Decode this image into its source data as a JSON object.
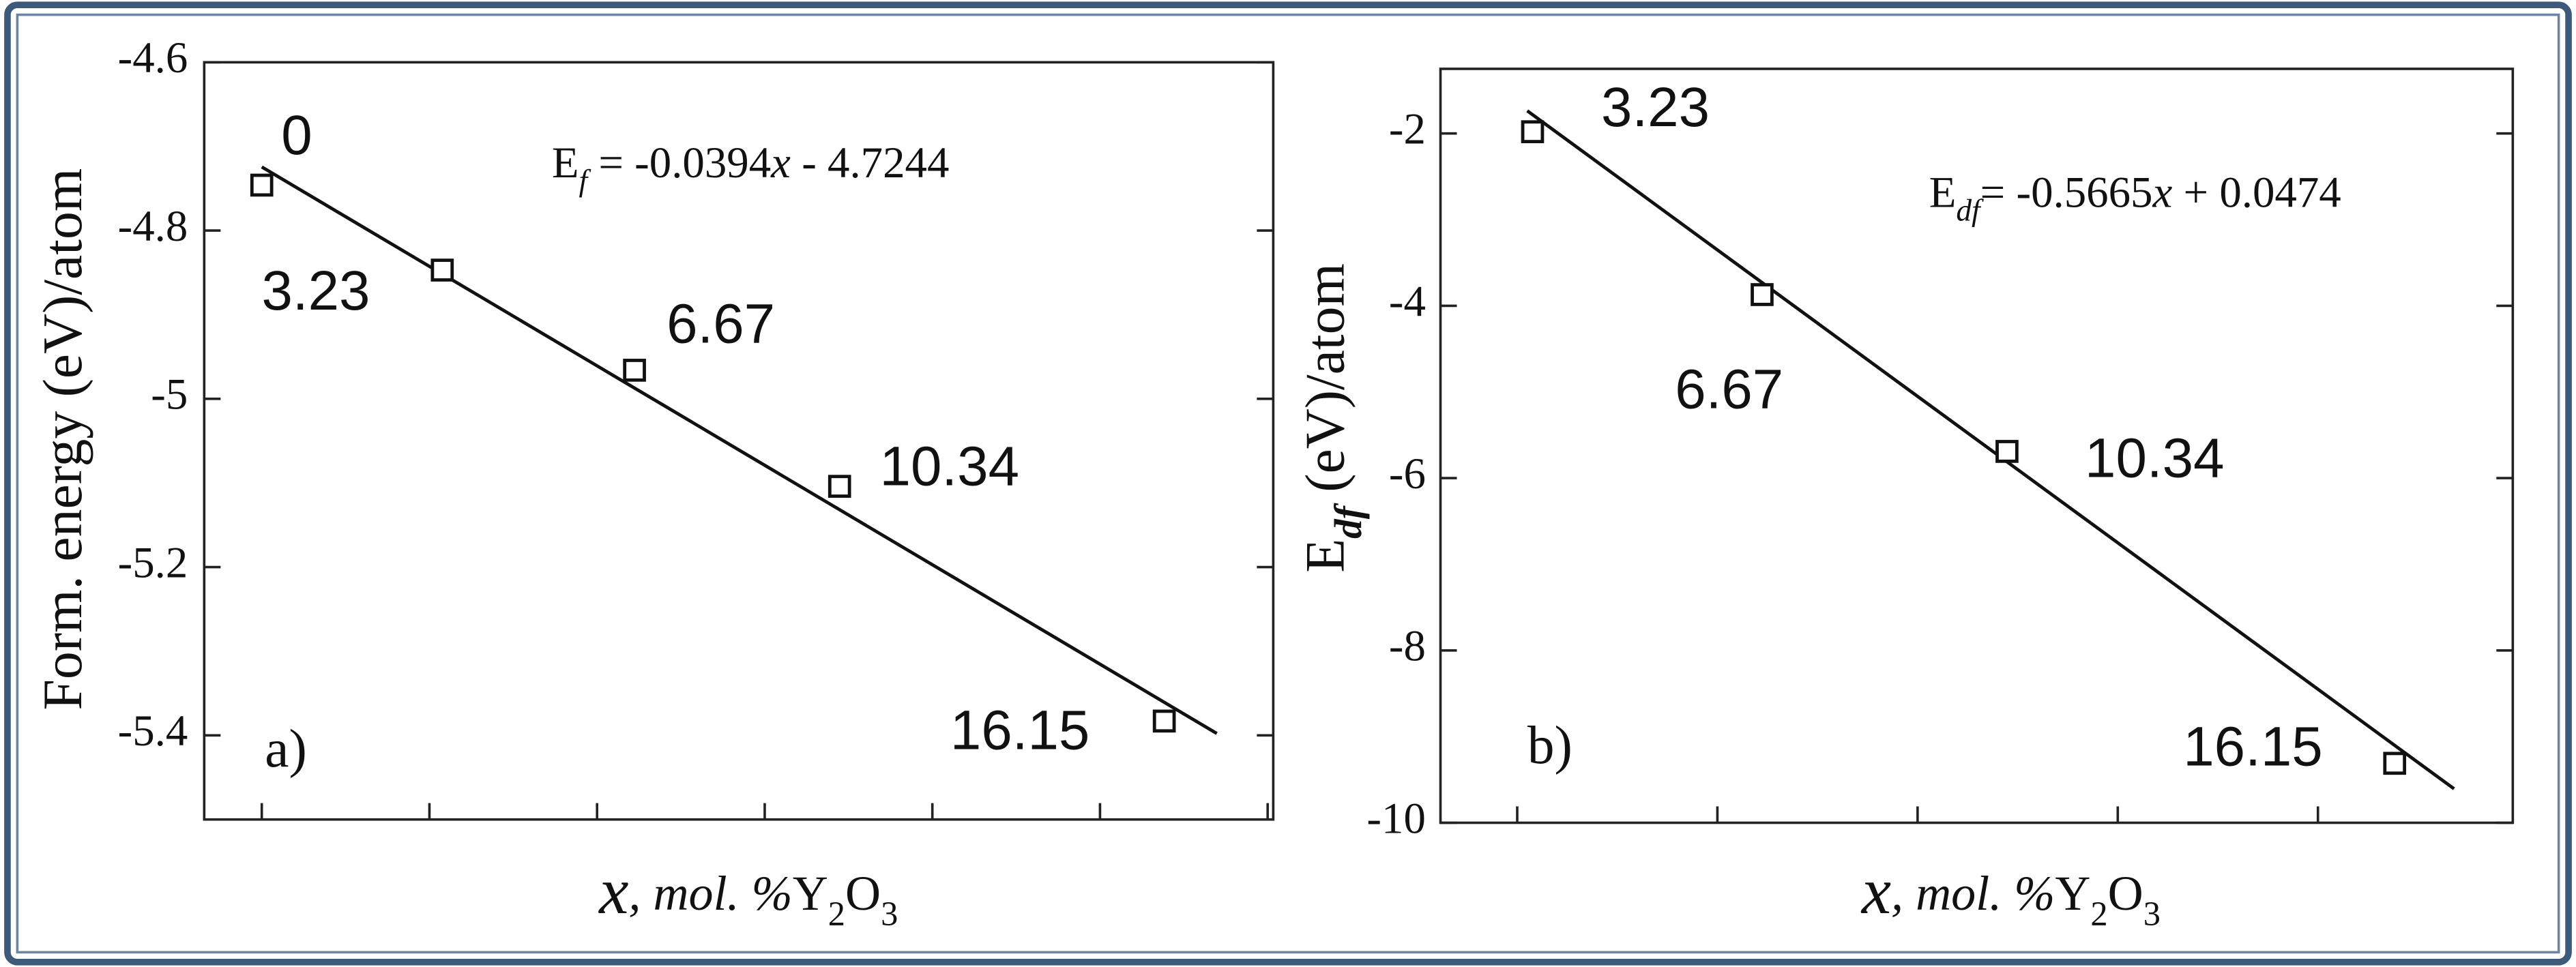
{
  "chart_data": [
    {
      "type": "scatter",
      "panel_label": "a)",
      "y_label": [
        {
          "text": "Form. energy (eV)/atom"
        }
      ],
      "x_label": [
        {
          "text": "x",
          "style": "italic-large"
        },
        {
          "text": ", mol. %",
          "style": "italic"
        },
        {
          "text": "Y"
        },
        {
          "text": "2",
          "style": "sub"
        },
        {
          "text": "O"
        },
        {
          "text": "3",
          "style": "sub"
        }
      ],
      "equation": [
        {
          "text": "E"
        },
        {
          "text": "f",
          "style": "italic-sub"
        },
        {
          "text": " = -0.0394"
        },
        {
          "text": "x",
          "style": "italic"
        },
        {
          "text": " - 4.7244"
        }
      ],
      "x": [
        0,
        3.23,
        6.67,
        10.34,
        16.15
      ],
      "values": [
        -4.746,
        -4.847,
        -4.966,
        -5.104,
        -5.383
      ],
      "fit": {
        "slope": -0.0394,
        "intercept": -4.7244,
        "xrange": [
          0,
          17.09
        ]
      },
      "xlim": [
        -1.03,
        18.1
      ],
      "xticks": [
        0,
        3,
        6,
        9,
        12,
        15,
        18
      ],
      "ylim": [
        -5.5,
        -4.6
      ],
      "yticks": [
        -4.6,
        -4.8,
        -5,
        -5.2,
        -5.4
      ],
      "color": "#111111"
    },
    {
      "type": "scatter",
      "panel_label": "b)",
      "y_label": [
        {
          "text": "E"
        },
        {
          "text": "df",
          "style": "bold-italic-sub"
        },
        {
          "text": " (eV)/atom"
        }
      ],
      "x_label": [
        {
          "text": "x",
          "style": "italic-large"
        },
        {
          "text": ", mol. %",
          "style": "italic"
        },
        {
          "text": "Y"
        },
        {
          "text": "2",
          "style": "sub"
        },
        {
          "text": "O"
        },
        {
          "text": "3",
          "style": "sub"
        }
      ],
      "equation": [
        {
          "text": "E"
        },
        {
          "text": "df",
          "style": "italic-sub"
        },
        {
          "text": "= -0.5665"
        },
        {
          "text": "x",
          "style": "italic"
        },
        {
          "text": " + 0.0474"
        }
      ],
      "x": [
        3.23,
        6.67,
        10.34,
        16.15
      ],
      "values": [
        -1.98,
        -3.87,
        -5.69,
        -9.31
      ],
      "fit": {
        "slope": -0.5665,
        "intercept": 0.0474,
        "xrange": [
          3.15,
          17.04
        ]
      },
      "xlim": [
        1.85,
        17.92
      ],
      "xticks": [
        3,
        6,
        9,
        12,
        15
      ],
      "ylim": [
        -10,
        -1.25
      ],
      "yticks": [
        -2,
        -4,
        -6,
        -8,
        -10
      ],
      "color": "#111111"
    }
  ]
}
